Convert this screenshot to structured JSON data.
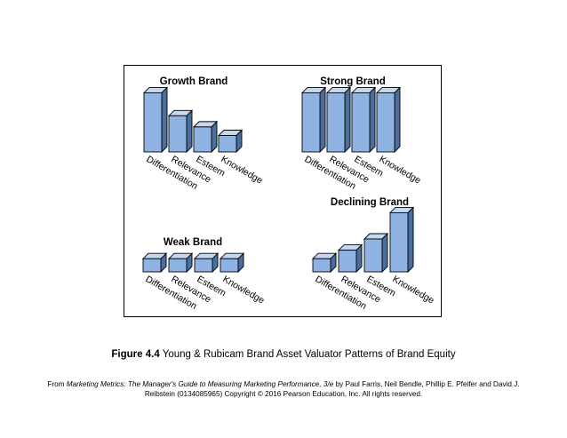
{
  "figure": {
    "caption_lead": "Figure 4.4",
    "caption_text": " Young & Rubicam Brand Asset Valuator Patterns of Brand Equity"
  },
  "source": {
    "prefix": "From ",
    "book_title": "Marketing Metrics: The Manager's Guide to Measuring Marketing Performance, 3/e",
    "line1_rest": " by Paul Farris, Neil Bendle, Phillip E. Pfeifer and David J.",
    "line2": "Reibstein (0134085965) Copyright © 2016 Pearson Education, Inc. All rights reserved."
  },
  "colors": {
    "bar_front": "#8fb4e3",
    "bar_top": "#c4d8f2",
    "bar_side": "#4a6f9e",
    "outline": "#000000"
  },
  "chart_data": [
    {
      "type": "bar",
      "title": "Growth Brand",
      "categories": [
        "Differentiation",
        "Relevance",
        "Esteem",
        "Knowledge"
      ],
      "values": [
        9,
        5.5,
        3.8,
        2.5
      ],
      "ylim": [
        0,
        10
      ],
      "grid": false,
      "legend": "none"
    },
    {
      "type": "bar",
      "title": "Strong Brand",
      "categories": [
        "Differentiation",
        "Relevance",
        "Esteem",
        "Knowledge"
      ],
      "values": [
        9,
        9,
        9,
        9
      ],
      "ylim": [
        0,
        10
      ],
      "grid": false,
      "legend": "none"
    },
    {
      "type": "bar",
      "title": "Weak Brand",
      "categories": [
        "Differentiation",
        "Relevance",
        "Esteem",
        "Knowledge"
      ],
      "values": [
        2,
        2,
        2,
        2
      ],
      "ylim": [
        0,
        10
      ],
      "grid": false,
      "legend": "none"
    },
    {
      "type": "bar",
      "title": "Declining Brand",
      "categories": [
        "Differentiation",
        "Relevance",
        "Esteem",
        "Knowledge"
      ],
      "values": [
        2,
        3.3,
        5,
        9
      ],
      "ylim": [
        0,
        10
      ],
      "grid": false,
      "legend": "none"
    }
  ]
}
